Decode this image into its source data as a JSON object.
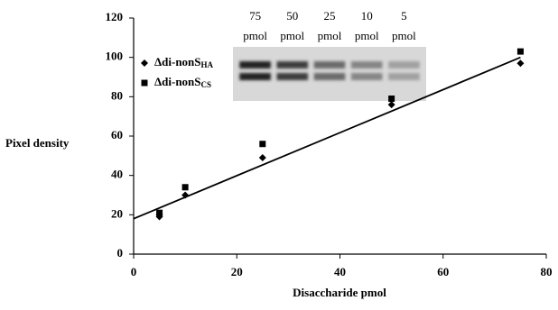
{
  "chart_data": {
    "type": "scatter",
    "x_label": "Disaccharide pmol",
    "y_label": "Pixel density",
    "xlim": [
      0,
      80
    ],
    "xticks": [
      0,
      20,
      40,
      60,
      80
    ],
    "ylim": [
      0,
      120
    ],
    "yticks": [
      0,
      20,
      40,
      60,
      80,
      100,
      120
    ],
    "series": [
      {
        "name": "Δdi-nonS",
        "subscript": "HA",
        "marker": "diamond",
        "color": "#000000",
        "x": [
          5,
          5,
          10,
          25,
          50,
          75
        ],
        "values": [
          19,
          20,
          30,
          49,
          76,
          97
        ]
      },
      {
        "name": "Δdi-nonS",
        "subscript": "CS",
        "marker": "square",
        "color": "#000000",
        "x": [
          5,
          10,
          25,
          50,
          75
        ],
        "values": [
          21,
          34,
          56,
          79,
          103
        ]
      }
    ],
    "trendline": {
      "x": [
        0,
        75
      ],
      "values": [
        18,
        100
      ],
      "color": "#000000"
    },
    "gel_lanes": [
      {
        "amount": "75",
        "unit": "pmol"
      },
      {
        "amount": "50",
        "unit": "pmol"
      },
      {
        "amount": "25",
        "unit": "pmol"
      },
      {
        "amount": "10",
        "unit": "pmol"
      },
      {
        "amount": "5",
        "unit": "pmol"
      }
    ]
  }
}
